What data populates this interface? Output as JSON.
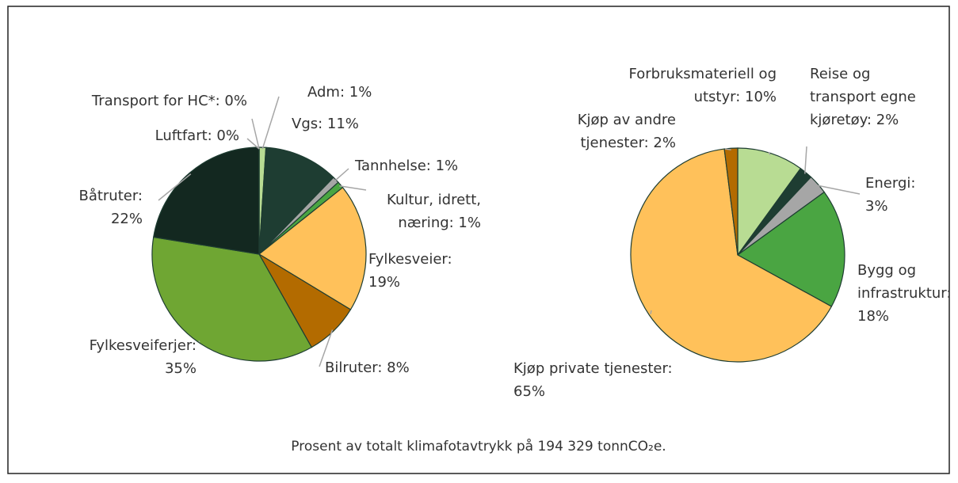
{
  "chart_data": [
    {
      "type": "pie",
      "labels": [
        [
          "Adm: 1%"
        ],
        [
          "Vgs: 11%"
        ],
        [
          "Tannhelse: 1%"
        ],
        [
          "Kultur, idrett,",
          "næring: 1%"
        ],
        [
          "Fylkesveier:",
          "19%"
        ],
        [
          "Bilruter: 8%"
        ],
        [
          "Fylkesveiferjer:",
          "35%"
        ],
        [
          "Båtruter:",
          "22%"
        ],
        [
          "Luftfart: 0%"
        ],
        [
          "Transport for HC*: 0%"
        ]
      ],
      "values": [
        1,
        11,
        1,
        1,
        19,
        8,
        35,
        22,
        0,
        0
      ],
      "colors": [
        "#b8dc93",
        "#1e3d32",
        "#a6a6a6",
        "#4aa542",
        "#ffc15a",
        "#b36b00",
        "#6fa633",
        "#132820",
        "#5b9bd5",
        "#d9d9d9"
      ]
    },
    {
      "type": "pie",
      "labels": [
        [
          "Forbruksmateriell og",
          "utstyr: 10%"
        ],
        [
          "Reise og",
          "transport egne",
          "kjøretøy: 2%"
        ],
        [
          "Energi:",
          "3%"
        ],
        [
          "Bygg og",
          "infrastruktur:",
          "18%"
        ],
        [
          "Kjøp private tjenester:",
          "65%"
        ],
        [
          "Kjøp av andre",
          "tjenester: 2%"
        ]
      ],
      "values": [
        10,
        2,
        3,
        18,
        65,
        2
      ],
      "colors": [
        "#b8dc93",
        "#1e3d32",
        "#a6a6a6",
        "#4aa542",
        "#ffc15a",
        "#b36b00"
      ]
    }
  ],
  "caption": "Prosent av totalt klimafotavtrykk på 194 329 tonnCO₂e."
}
